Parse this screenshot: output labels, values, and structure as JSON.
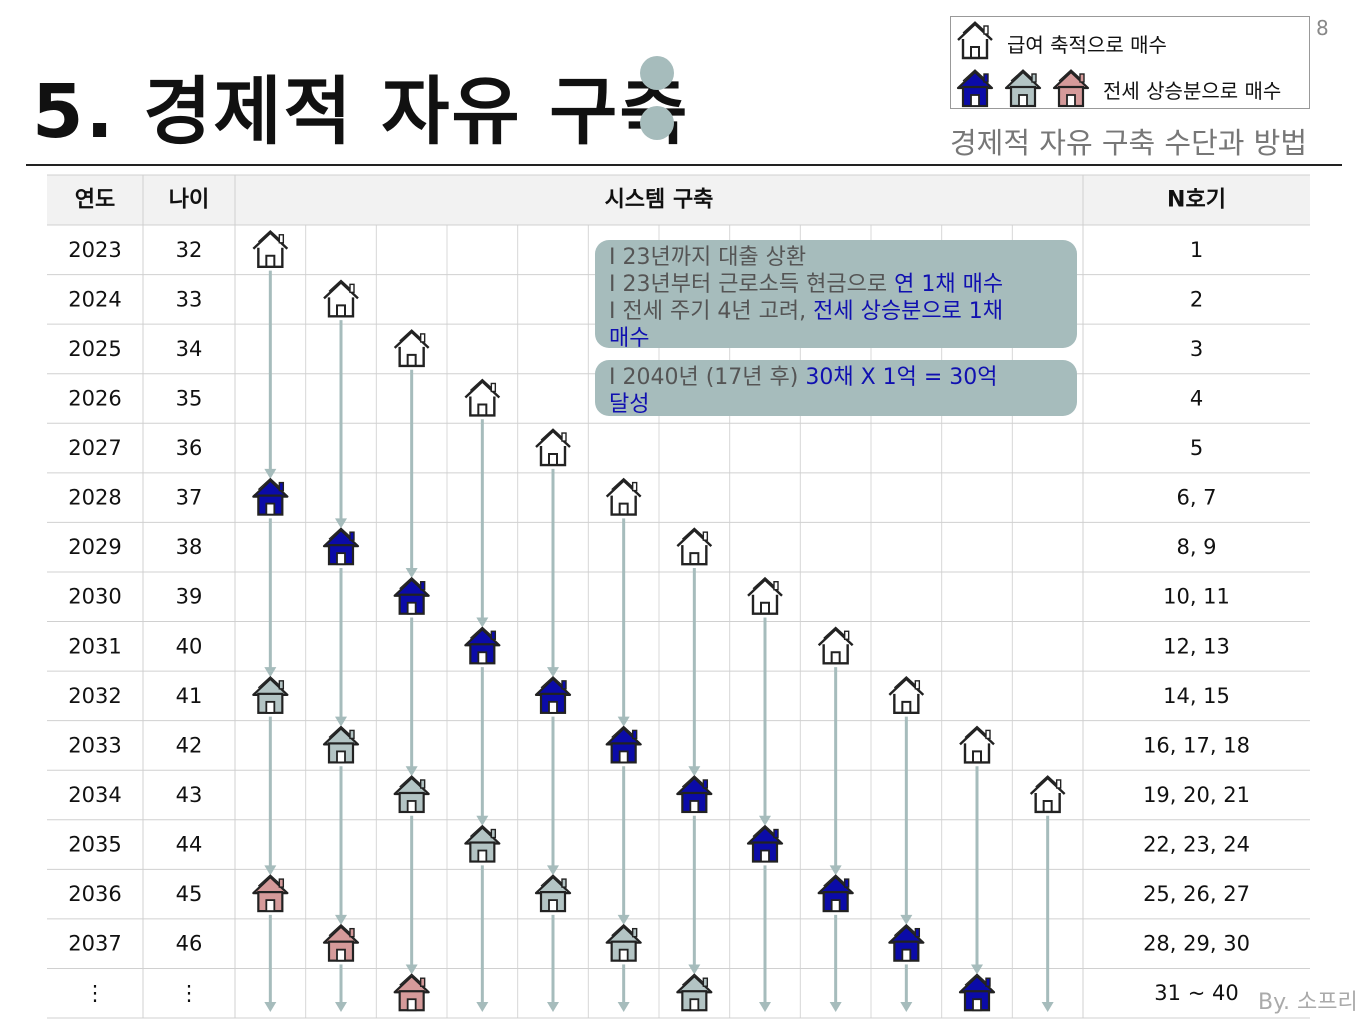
{
  "page_number": "8",
  "title": "5. 경제적 자유 구축",
  "subtitle": "경제적 자유 구축 수단과 방법",
  "legend": {
    "items": [
      {
        "icon": "house-outline-icon",
        "colors": [
          "white"
        ],
        "label": "급여 축적으로 매수"
      },
      {
        "icon": "house-filled-icon",
        "colors": [
          "#0b0ba8",
          "#b3c4c4",
          "#d59a9a"
        ],
        "label": "전세 상승분으로 매수"
      }
    ]
  },
  "table": {
    "headers": {
      "year": "연도",
      "age": "나이",
      "system": "시스템 구축",
      "count": "N호기"
    },
    "rows": [
      {
        "year": "2023",
        "age": "32",
        "count": "1"
      },
      {
        "year": "2024",
        "age": "33",
        "count": "2"
      },
      {
        "year": "2025",
        "age": "34",
        "count": "3"
      },
      {
        "year": "2026",
        "age": "35",
        "count": "4"
      },
      {
        "year": "2027",
        "age": "36",
        "count": "5"
      },
      {
        "year": "2028",
        "age": "37",
        "count": "6, 7"
      },
      {
        "year": "2029",
        "age": "38",
        "count": "8, 9"
      },
      {
        "year": "2030",
        "age": "39",
        "count": "10, 11"
      },
      {
        "year": "2031",
        "age": "40",
        "count": "12, 13"
      },
      {
        "year": "2032",
        "age": "41",
        "count": "14, 15"
      },
      {
        "year": "2033",
        "age": "42",
        "count": "16, 17, 18"
      },
      {
        "year": "2034",
        "age": "43",
        "count": "19, 20, 21"
      },
      {
        "year": "2035",
        "age": "44",
        "count": "22, 23, 24"
      },
      {
        "year": "2036",
        "age": "45",
        "count": "25, 26, 27"
      },
      {
        "year": "2037",
        "age": "46",
        "count": "28, 29, 30"
      },
      {
        "year": "⋮",
        "age": "⋮",
        "count": "31 ~ 40"
      }
    ]
  },
  "house_colors": {
    "salary": "#ffffff",
    "blue": "#0b0ba8",
    "gray": "#b3c4c4",
    "pink": "#d59a9a"
  },
  "houses": [
    {
      "col": 0,
      "row": 0,
      "kind": "salary"
    },
    {
      "col": 1,
      "row": 1,
      "kind": "salary"
    },
    {
      "col": 2,
      "row": 2,
      "kind": "salary"
    },
    {
      "col": 3,
      "row": 3,
      "kind": "salary"
    },
    {
      "col": 4,
      "row": 4,
      "kind": "salary"
    },
    {
      "col": 5,
      "row": 5,
      "kind": "salary"
    },
    {
      "col": 6,
      "row": 6,
      "kind": "salary"
    },
    {
      "col": 7,
      "row": 7,
      "kind": "salary"
    },
    {
      "col": 8,
      "row": 8,
      "kind": "salary"
    },
    {
      "col": 9,
      "row": 9,
      "kind": "salary"
    },
    {
      "col": 10,
      "row": 10,
      "kind": "salary"
    },
    {
      "col": 11,
      "row": 11,
      "kind": "salary"
    },
    {
      "col": 0,
      "row": 5,
      "kind": "blue"
    },
    {
      "col": 1,
      "row": 6,
      "kind": "blue"
    },
    {
      "col": 2,
      "row": 7,
      "kind": "blue"
    },
    {
      "col": 3,
      "row": 8,
      "kind": "blue"
    },
    {
      "col": 4,
      "row": 9,
      "kind": "blue"
    },
    {
      "col": 5,
      "row": 10,
      "kind": "blue"
    },
    {
      "col": 6,
      "row": 11,
      "kind": "blue"
    },
    {
      "col": 7,
      "row": 12,
      "kind": "blue"
    },
    {
      "col": 8,
      "row": 13,
      "kind": "blue"
    },
    {
      "col": 9,
      "row": 14,
      "kind": "blue"
    },
    {
      "col": 10,
      "row": 15,
      "kind": "blue"
    },
    {
      "col": 0,
      "row": 9,
      "kind": "gray"
    },
    {
      "col": 1,
      "row": 10,
      "kind": "gray"
    },
    {
      "col": 2,
      "row": 11,
      "kind": "gray"
    },
    {
      "col": 3,
      "row": 12,
      "kind": "gray"
    },
    {
      "col": 4,
      "row": 13,
      "kind": "gray"
    },
    {
      "col": 5,
      "row": 14,
      "kind": "gray"
    },
    {
      "col": 6,
      "row": 15,
      "kind": "gray"
    },
    {
      "col": 0,
      "row": 13,
      "kind": "pink"
    },
    {
      "col": 1,
      "row": 14,
      "kind": "pink"
    },
    {
      "col": 2,
      "row": 15,
      "kind": "pink"
    }
  ],
  "callouts": [
    {
      "lines": [
        [
          {
            "text": "I 23년까지 대출 상환"
          }
        ],
        [
          {
            "text": "I 23년부터 근로소득 현금으로 "
          },
          {
            "text": "연 1채 매수",
            "hl": true
          }
        ],
        [
          {
            "text": "I 전세 주기 4년 고려, "
          },
          {
            "text": "전세 상승분으로 1채",
            "hl": true
          }
        ],
        [
          {
            "text": "매수",
            "hl": true
          }
        ]
      ]
    },
    {
      "lines": [
        [
          {
            "text": "I 2040년 (17년  후) "
          },
          {
            "text": "30채 X 1억 = 30억",
            "hl": true
          }
        ],
        [
          {
            "text": "달성",
            "hl": true
          }
        ]
      ]
    }
  ],
  "signature": "By. 소프리"
}
